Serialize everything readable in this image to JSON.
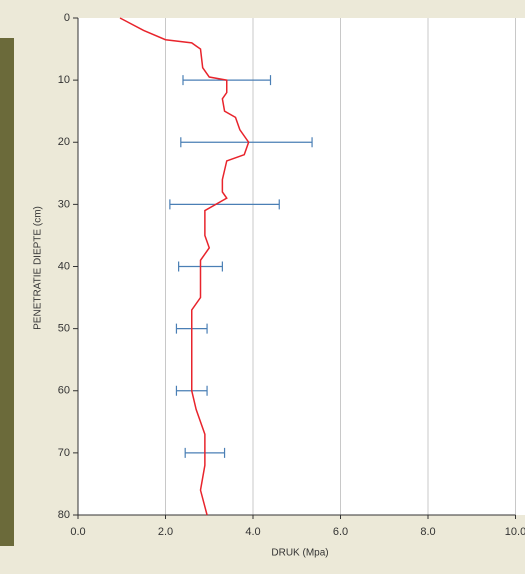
{
  "chart_data": {
    "type": "profile",
    "xlabel": "DRUK  (Mpa)",
    "ylabel": "PENETRATIE DIEPTE (cm)",
    "xlim": [
      0,
      10
    ],
    "ylim": [
      0,
      80
    ],
    "xticks": [
      {
        "value": 0,
        "label": "0.0"
      },
      {
        "value": 2,
        "label": "2.0"
      },
      {
        "value": 4,
        "label": "4.0"
      },
      {
        "value": 6,
        "label": "6.0"
      },
      {
        "value": 8,
        "label": "8.0"
      },
      {
        "value": 10,
        "label": "10.0"
      }
    ],
    "yticks": [
      0,
      10,
      20,
      30,
      40,
      50,
      60,
      70,
      80
    ],
    "y_inverted": true,
    "grid": "x",
    "series": [
      {
        "color": "#e8242c",
        "values": [
          0.96,
          1.5,
          2.0,
          2.6,
          2.7,
          2.8,
          2.85,
          3.0,
          3.4,
          3.4,
          3.3,
          3.35,
          3.6,
          3.7,
          3.9,
          3.8,
          3.4,
          3.3,
          3.3,
          3.4,
          2.9,
          2.9,
          3.0,
          2.8,
          2.8,
          2.6,
          2.6,
          2.7,
          2.9,
          2.9,
          2.8,
          2.95
        ],
        "depth": [
          0,
          2,
          3.5,
          4,
          4.5,
          5,
          8,
          9.5,
          10,
          12,
          13,
          15,
          16,
          18,
          20,
          22,
          23,
          26,
          28,
          29,
          31,
          35,
          37,
          39,
          45,
          47,
          60,
          63,
          67,
          72,
          76,
          80
        ]
      }
    ],
    "errorbars": {
      "color": "#4a7fb5",
      "depth": [
        10,
        20,
        30,
        40,
        50,
        60,
        70
      ],
      "values": [
        3.4,
        3.85,
        3.35,
        2.8,
        2.6,
        2.6,
        2.9
      ],
      "errors": [
        1.0,
        1.5,
        1.25,
        0.5,
        0.35,
        0.35,
        0.45
      ]
    }
  }
}
